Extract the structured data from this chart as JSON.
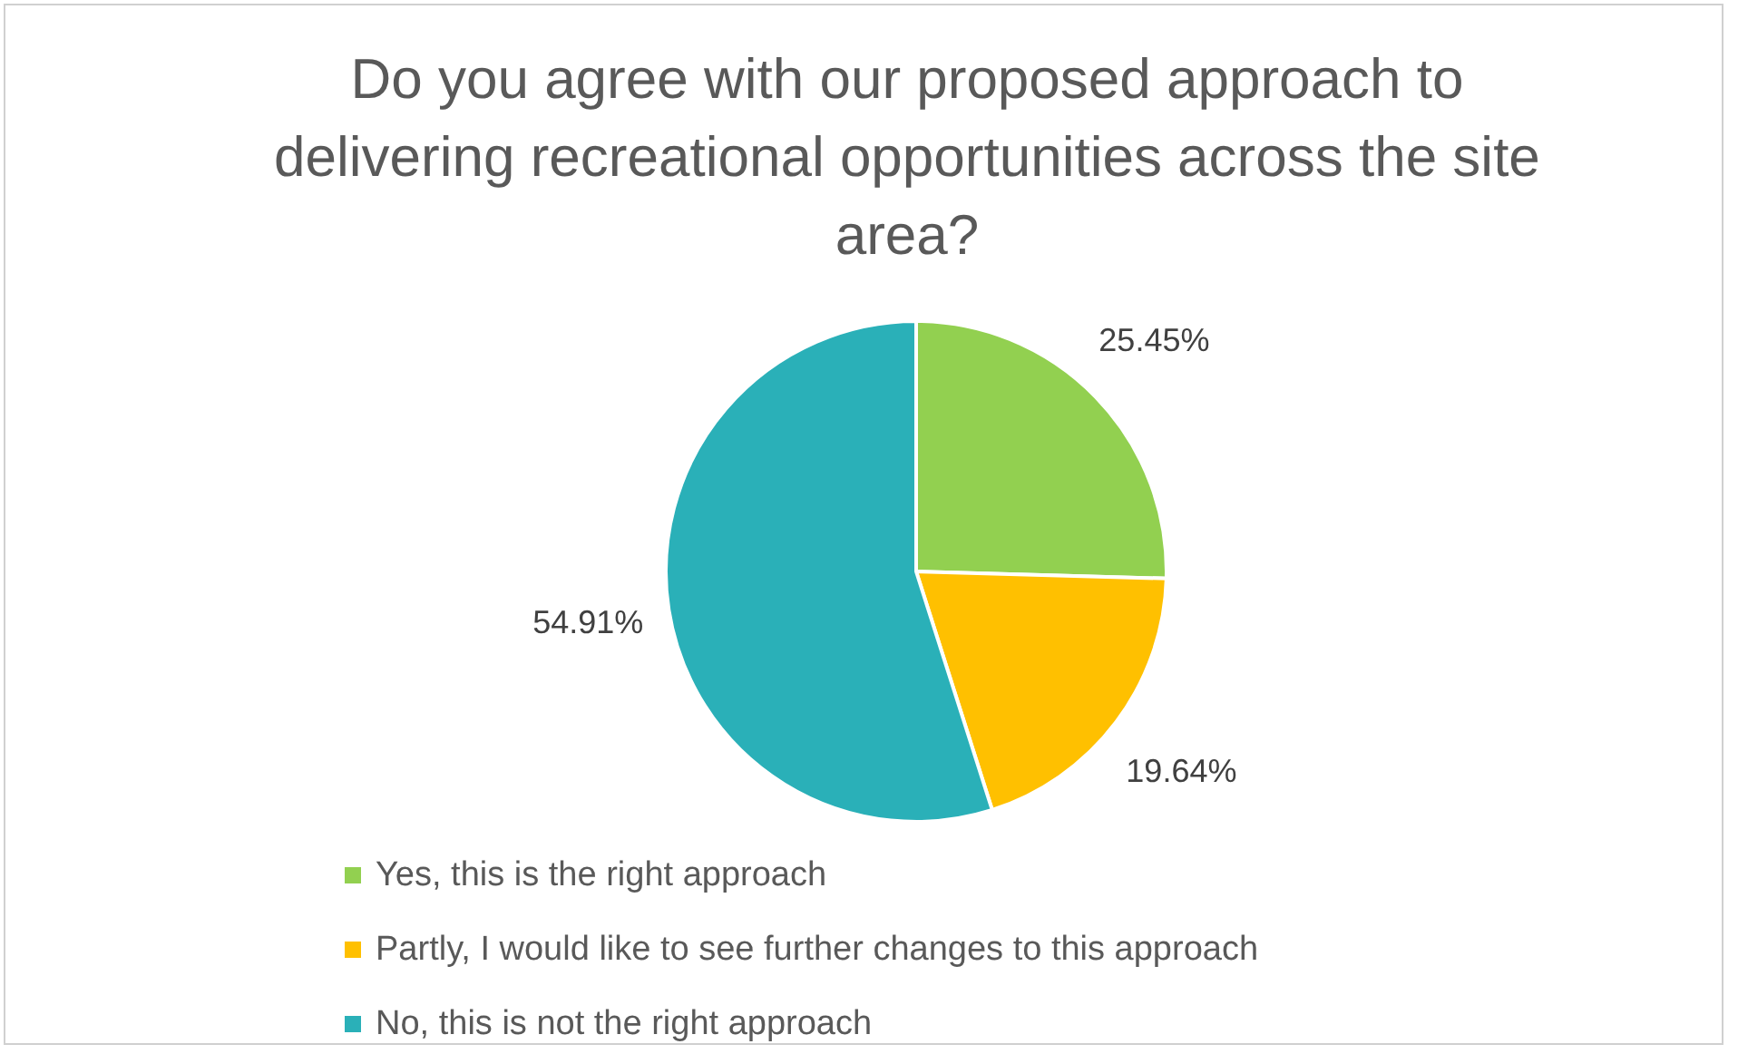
{
  "chart_data": {
    "type": "pie",
    "title": "Do you agree with our proposed approach to delivering recreational opportunities across the site area?",
    "categories": [
      "Yes, this is the right approach",
      "Partly, I would like to see further changes to this approach",
      "No, this is not the right approach"
    ],
    "values": [
      25.45,
      19.64,
      54.91
    ],
    "colors": [
      "#92d050",
      "#ffc000",
      "#2ab0b8"
    ],
    "value_labels": [
      "25.45%",
      "19.64%",
      "54.91%"
    ],
    "legend": "bottom"
  }
}
